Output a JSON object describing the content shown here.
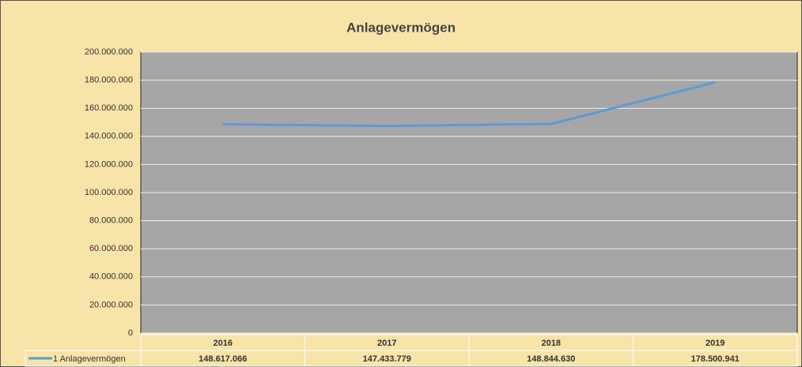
{
  "chart_data": {
    "type": "line",
    "title": "Anlagevermögen",
    "categories": [
      "2016",
      "2017",
      "2018",
      "2019"
    ],
    "series": [
      {
        "name": "1 Anlagevermögen",
        "color": "#5b9bd5",
        "values": [
          148617066,
          147433779,
          148844630,
          178500941
        ],
        "value_labels": [
          "148.617.066",
          "147.433.779",
          "148.844.630",
          "178.500.941"
        ]
      }
    ],
    "ylim": [
      0,
      200000000
    ],
    "yticks": [
      0,
      {
        "value": 20000000,
        "label": "20.000.000"
      },
      {
        "value": 40000000,
        "label": "40.000.000"
      },
      {
        "value": 60000000,
        "label": "60.000.000"
      },
      {
        "value": 80000000,
        "label": "80.000.000"
      },
      {
        "value": 100000000,
        "label": "100.000.000"
      },
      {
        "value": 120000000,
        "label": "120.000.000"
      },
      {
        "value": 140000000,
        "label": "140.000.000"
      },
      {
        "value": 160000000,
        "label": "160.000.000"
      },
      {
        "value": 180000000,
        "label": "180.000.000"
      },
      {
        "value": 200000000,
        "label": "200.000.000"
      }
    ],
    "grid": true
  }
}
